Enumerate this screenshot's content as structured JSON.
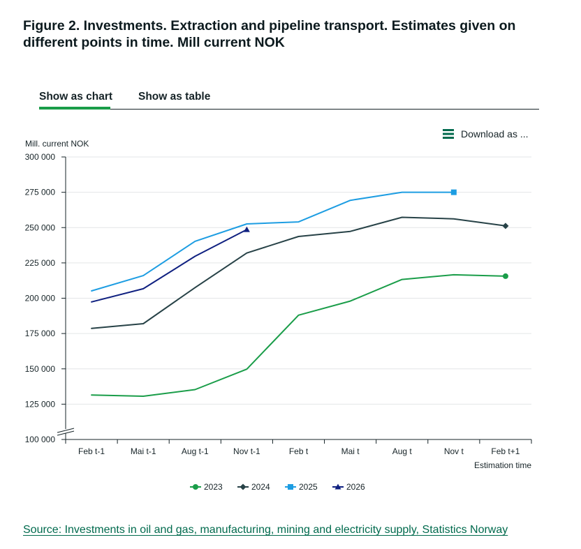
{
  "title": "Figure 2. Investments. Extraction and pipeline transport. Estimates given on different points in time. Mill current NOK",
  "tabs": {
    "chart_label": "Show as chart",
    "table_label": "Show as table",
    "active": "chart"
  },
  "download": {
    "label": "Download as ...",
    "icon": "menu-icon"
  },
  "source": {
    "label": "Source: Investments in oil and gas, manufacturing, mining and electricity supply, Statistics Norway"
  },
  "chart_data": {
    "type": "line",
    "title": "",
    "xlabel": "Estimation time",
    "ylabel": "Mill. current NOK",
    "categories": [
      "Feb t-1",
      "Mai t-1",
      "Aug t-1",
      "Nov t-1",
      "Feb t",
      "Mai t",
      "Aug t",
      "Nov t",
      "Feb t+1"
    ],
    "ylim": [
      100000,
      300000
    ],
    "yticks": [
      100000,
      125000,
      150000,
      175000,
      200000,
      225000,
      250000,
      275000,
      300000
    ],
    "ytick_labels": [
      "100 000",
      "125 000",
      "150 000",
      "175 000",
      "200 000",
      "225 000",
      "250 000",
      "275 000",
      "300 000"
    ],
    "grid": true,
    "axis_break": true,
    "legend_position": "bottom",
    "series": [
      {
        "name": "2023",
        "color": "#1a9d49",
        "marker": "circle",
        "values": [
          131500,
          130600,
          135300,
          149800,
          188000,
          198000,
          213300,
          216600,
          215600
        ]
      },
      {
        "name": "2024",
        "color": "#274247",
        "marker": "diamond",
        "values": [
          178600,
          182000,
          207500,
          232000,
          243700,
          247300,
          257300,
          256200,
          251200
        ]
      },
      {
        "name": "2025",
        "color": "#1d9de2",
        "marker": "square",
        "values": [
          205200,
          216000,
          240300,
          252600,
          254000,
          269300,
          275000,
          275000,
          null
        ]
      },
      {
        "name": "2026",
        "color": "#0f2080",
        "marker": "triangle",
        "values": [
          197400,
          206700,
          229700,
          248600,
          null,
          null,
          null,
          null,
          null
        ]
      }
    ]
  }
}
